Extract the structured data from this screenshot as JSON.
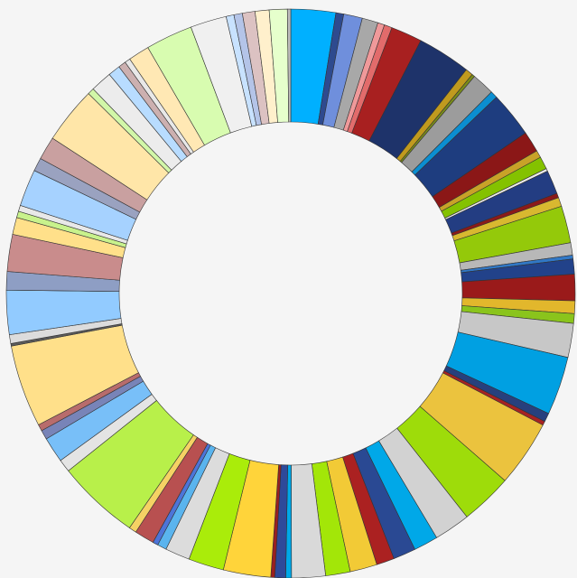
{
  "chart_data": {
    "type": "pie",
    "variant": "donut",
    "legend": "none",
    "slices": [
      {
        "value": 4.28,
        "color": "#00b0ff"
      },
      {
        "value": 0.75,
        "color": "#2e4a8f"
      },
      {
        "value": 1.79,
        "color": "#6f8fdc"
      },
      {
        "value": 1.53,
        "color": "#a8a8a8"
      },
      {
        "value": 0.65,
        "color": "#f0999a"
      },
      {
        "value": 0.75,
        "color": "#e26b6b"
      },
      {
        "value": 2.98,
        "color": "#a82020"
      },
      {
        "value": 5.1,
        "color": "#1e336a"
      },
      {
        "value": 0.72,
        "color": "#c09a1e"
      },
      {
        "value": 0.28,
        "color": "#7a8c18"
      },
      {
        "value": 2.17,
        "color": "#9c9c9c"
      },
      {
        "value": 0.68,
        "color": "#0b8ed1"
      },
      {
        "value": 4.35,
        "color": "#1e3d7f"
      },
      {
        "value": 1.99,
        "color": "#8b1717"
      },
      {
        "value": 0.7,
        "color": "#c8a228"
      },
      {
        "value": 1.2,
        "color": "#84c200"
      },
      {
        "value": 0.26,
        "color": "#ececec"
      },
      {
        "value": 2.28,
        "color": "#233d82"
      },
      {
        "value": 0.43,
        "color": "#8b1a1a"
      },
      {
        "value": 0.86,
        "color": "#d8b830"
      },
      {
        "value": 3.54,
        "color": "#94c90a"
      },
      {
        "value": 1.18,
        "color": "#b8b8b8"
      },
      {
        "value": 0.37,
        "color": "#3178c6"
      },
      {
        "value": 1.44,
        "color": "#22428a"
      },
      {
        "value": 2.51,
        "color": "#9a1a1a"
      },
      {
        "value": 1.22,
        "color": "#e2b72c"
      },
      {
        "value": 0.92,
        "color": "#8ac41c"
      },
      {
        "value": 3.25,
        "color": "#c7c7c7"
      },
      {
        "value": 5.6,
        "color": "#00a0e2"
      },
      {
        "value": 0.84,
        "color": "#27407d"
      },
      {
        "value": 0.38,
        "color": "#a82222"
      },
      {
        "value": 6.35,
        "color": "#ebc33e"
      },
      {
        "value": 4.96,
        "color": "#9edc0a"
      },
      {
        "value": 3.46,
        "color": "#d2d2d2"
      },
      {
        "value": 2.33,
        "color": "#00a8e8"
      },
      {
        "value": 2.16,
        "color": "#2a4993"
      },
      {
        "value": 1.71,
        "color": "#ab2121"
      },
      {
        "value": 2.59,
        "color": "#f2ca36"
      },
      {
        "value": 2.35,
        "color": "#a3e608"
      },
      {
        "value": 3.23,
        "color": "#d9d9d9"
      },
      {
        "value": 0.55,
        "color": "#00a8e8"
      },
      {
        "value": 1.03,
        "color": "#2e4a9a"
      },
      {
        "value": 0.38,
        "color": "#9a2020"
      },
      {
        "value": 4.53,
        "color": "#ffd43a"
      },
      {
        "value": 3.39,
        "color": "#aaec0a"
      },
      {
        "value": 2.36,
        "color": "#dcdcdc"
      },
      {
        "value": 0.88,
        "color": "#5ab4ee"
      },
      {
        "value": 0.51,
        "color": "#4d74d8"
      },
      {
        "value": 1.89,
        "color": "#b85050"
      },
      {
        "value": 0.71,
        "color": "#f5d264"
      },
      {
        "value": 7.91,
        "color": "#b8f04a"
      },
      {
        "value": 1.22,
        "color": "#e4e4e4"
      },
      {
        "value": 2.44,
        "color": "#78bff8"
      },
      {
        "value": 0.89,
        "color": "#7884b8"
      },
      {
        "value": 0.63,
        "color": "#b86c6c"
      },
      {
        "value": 7.87,
        "color": "#ffe08a"
      },
      {
        "value": 0.24,
        "color": "#5c5c5c"
      },
      {
        "value": 0.85,
        "color": "#dcdcdc"
      },
      {
        "value": 4.22,
        "color": "#92cbff"
      },
      {
        "value": 1.76,
        "color": "#8e9ec4"
      },
      {
        "value": 3.54,
        "color": "#c98c8c"
      },
      {
        "value": 1.63,
        "color": "#ffe08a"
      },
      {
        "value": 0.61,
        "color": "#c8f28c"
      },
      {
        "value": 0.58,
        "color": "#e8e8e8"
      },
      {
        "value": 3.54,
        "color": "#a6d2ff"
      },
      {
        "value": 1.27,
        "color": "#9aa2c0"
      },
      {
        "value": 2.23,
        "color": "#c9a0a0"
      },
      {
        "value": 5.41,
        "color": "#ffe6a8"
      },
      {
        "value": 0.62,
        "color": "#d2f7a8"
      },
      {
        "value": 2.05,
        "color": "#ececec"
      },
      {
        "value": 1.16,
        "color": "#b8dcff"
      },
      {
        "value": 0.72,
        "color": "#ccb0b0"
      },
      {
        "value": 0.53,
        "color": "#e8e8e8"
      },
      {
        "value": 2.02,
        "color": "#ffe8b4"
      },
      {
        "value": 4.5,
        "color": "#d8fcb0"
      },
      {
        "value": 3.46,
        "color": "#f0f0f0"
      },
      {
        "value": 0.75,
        "color": "#c8e2ff"
      },
      {
        "value": 0.81,
        "color": "#b4c4e8"
      },
      {
        "value": 1.21,
        "color": "#dcc2c2"
      },
      {
        "value": 1.34,
        "color": "#fff0cc"
      },
      {
        "value": 1.72,
        "color": "#e6ffcc"
      },
      {
        "value": 0.32,
        "color": "#bcbcbc"
      }
    ]
  }
}
